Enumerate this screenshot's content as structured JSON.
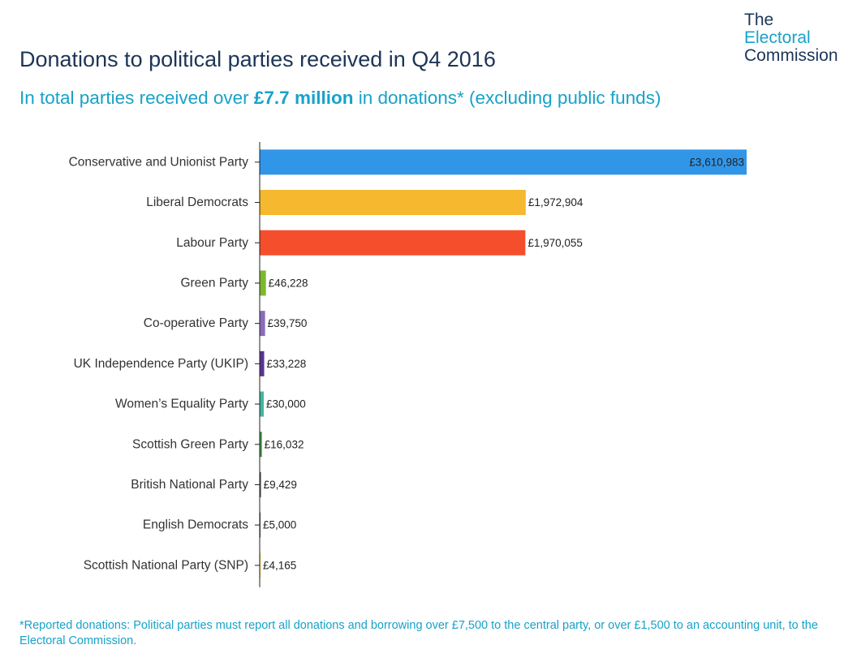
{
  "header": {
    "title": "Donations to political parties received in Q4 2016",
    "subtitle_pre": "In total parties received over ",
    "subtitle_bold": "£7.7 million",
    "subtitle_post": " in donations* (excluding public funds)"
  },
  "logo": {
    "line1": "The",
    "line2": "Electoral",
    "line3": "Commission"
  },
  "footnote": "*Reported donations: Political parties must report all donations and borrowing over £7,500 to the central party, or over £1,500 to an accounting unit, to the Electoral Commission.",
  "chart_data": {
    "type": "bar",
    "orientation": "horizontal",
    "title": "Donations to political parties received in Q4 2016",
    "categories": [
      "Conservative and Unionist Party",
      "Liberal Democrats",
      "Labour Party",
      "Green Party",
      "Co-operative Party",
      "UK Independence Party (UKIP)",
      "Women’s Equality Party",
      "Scottish Green Party",
      "British National Party",
      "English Democrats",
      "Scottish National Party (SNP)"
    ],
    "values": [
      3610983,
      1972904,
      1970055,
      46228,
      39750,
      33228,
      30000,
      16032,
      9429,
      5000,
      4165
    ],
    "value_labels": [
      "£3,610,983",
      "£1,972,904",
      "£1,970,055",
      "£46,228",
      "£39,750",
      "£33,228",
      "£30,000",
      "£16,032",
      "£9,429",
      "£5,000",
      "£4,165"
    ],
    "colors": [
      "#3196e8",
      "#f5b82e",
      "#f44e2c",
      "#7cb82f",
      "#8a6cb8",
      "#5a3391",
      "#41b69e",
      "#3d8c40",
      "#444444",
      "#444444",
      "#f0c419"
    ],
    "xlim": [
      0,
      3610983
    ],
    "grid": false,
    "legend": "none"
  }
}
